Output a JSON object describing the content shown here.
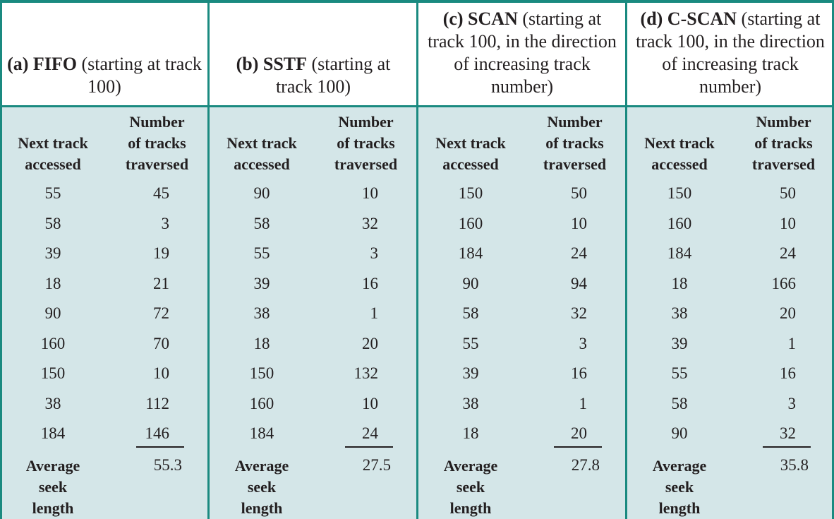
{
  "colors": {
    "border": "#1a8a80",
    "body_bg": "#d4e6e8"
  },
  "col_headers": {
    "next": "Next track accessed",
    "traversed_l1": "Number",
    "traversed_l2": "of tracks",
    "traversed_l3": "traversed",
    "next_l1": "Next track",
    "next_l2": "accessed"
  },
  "avg_label": {
    "l1": "Average",
    "l2": "seek",
    "l3": "length"
  },
  "sections": [
    {
      "label": "(a) FIFO",
      "desc": " (starting at track 100)",
      "next": [
        55,
        58,
        39,
        18,
        90,
        160,
        150,
        38,
        184
      ],
      "traversed": [
        45,
        3,
        19,
        21,
        72,
        70,
        10,
        112,
        146
      ],
      "average": "55.3"
    },
    {
      "label": "(b) SSTF",
      "desc": " (starting at track 100)",
      "next": [
        90,
        58,
        55,
        39,
        38,
        18,
        150,
        160,
        184
      ],
      "traversed": [
        10,
        32,
        3,
        16,
        1,
        20,
        132,
        10,
        24
      ],
      "average": "27.5"
    },
    {
      "label": "(c) SCAN",
      "desc": " (starting at track 100, in the direction of increasing track number)",
      "next": [
        150,
        160,
        184,
        90,
        58,
        55,
        39,
        38,
        18
      ],
      "traversed": [
        50,
        10,
        24,
        94,
        32,
        3,
        16,
        1,
        20
      ],
      "average": "27.8"
    },
    {
      "label": "(d) C-SCAN",
      "desc": " (starting at track 100, in the direction of increasing track number)",
      "next": [
        150,
        160,
        184,
        18,
        38,
        39,
        55,
        58,
        90
      ],
      "traversed": [
        50,
        10,
        24,
        166,
        20,
        1,
        16,
        3,
        32
      ],
      "average": "35.8"
    }
  ]
}
